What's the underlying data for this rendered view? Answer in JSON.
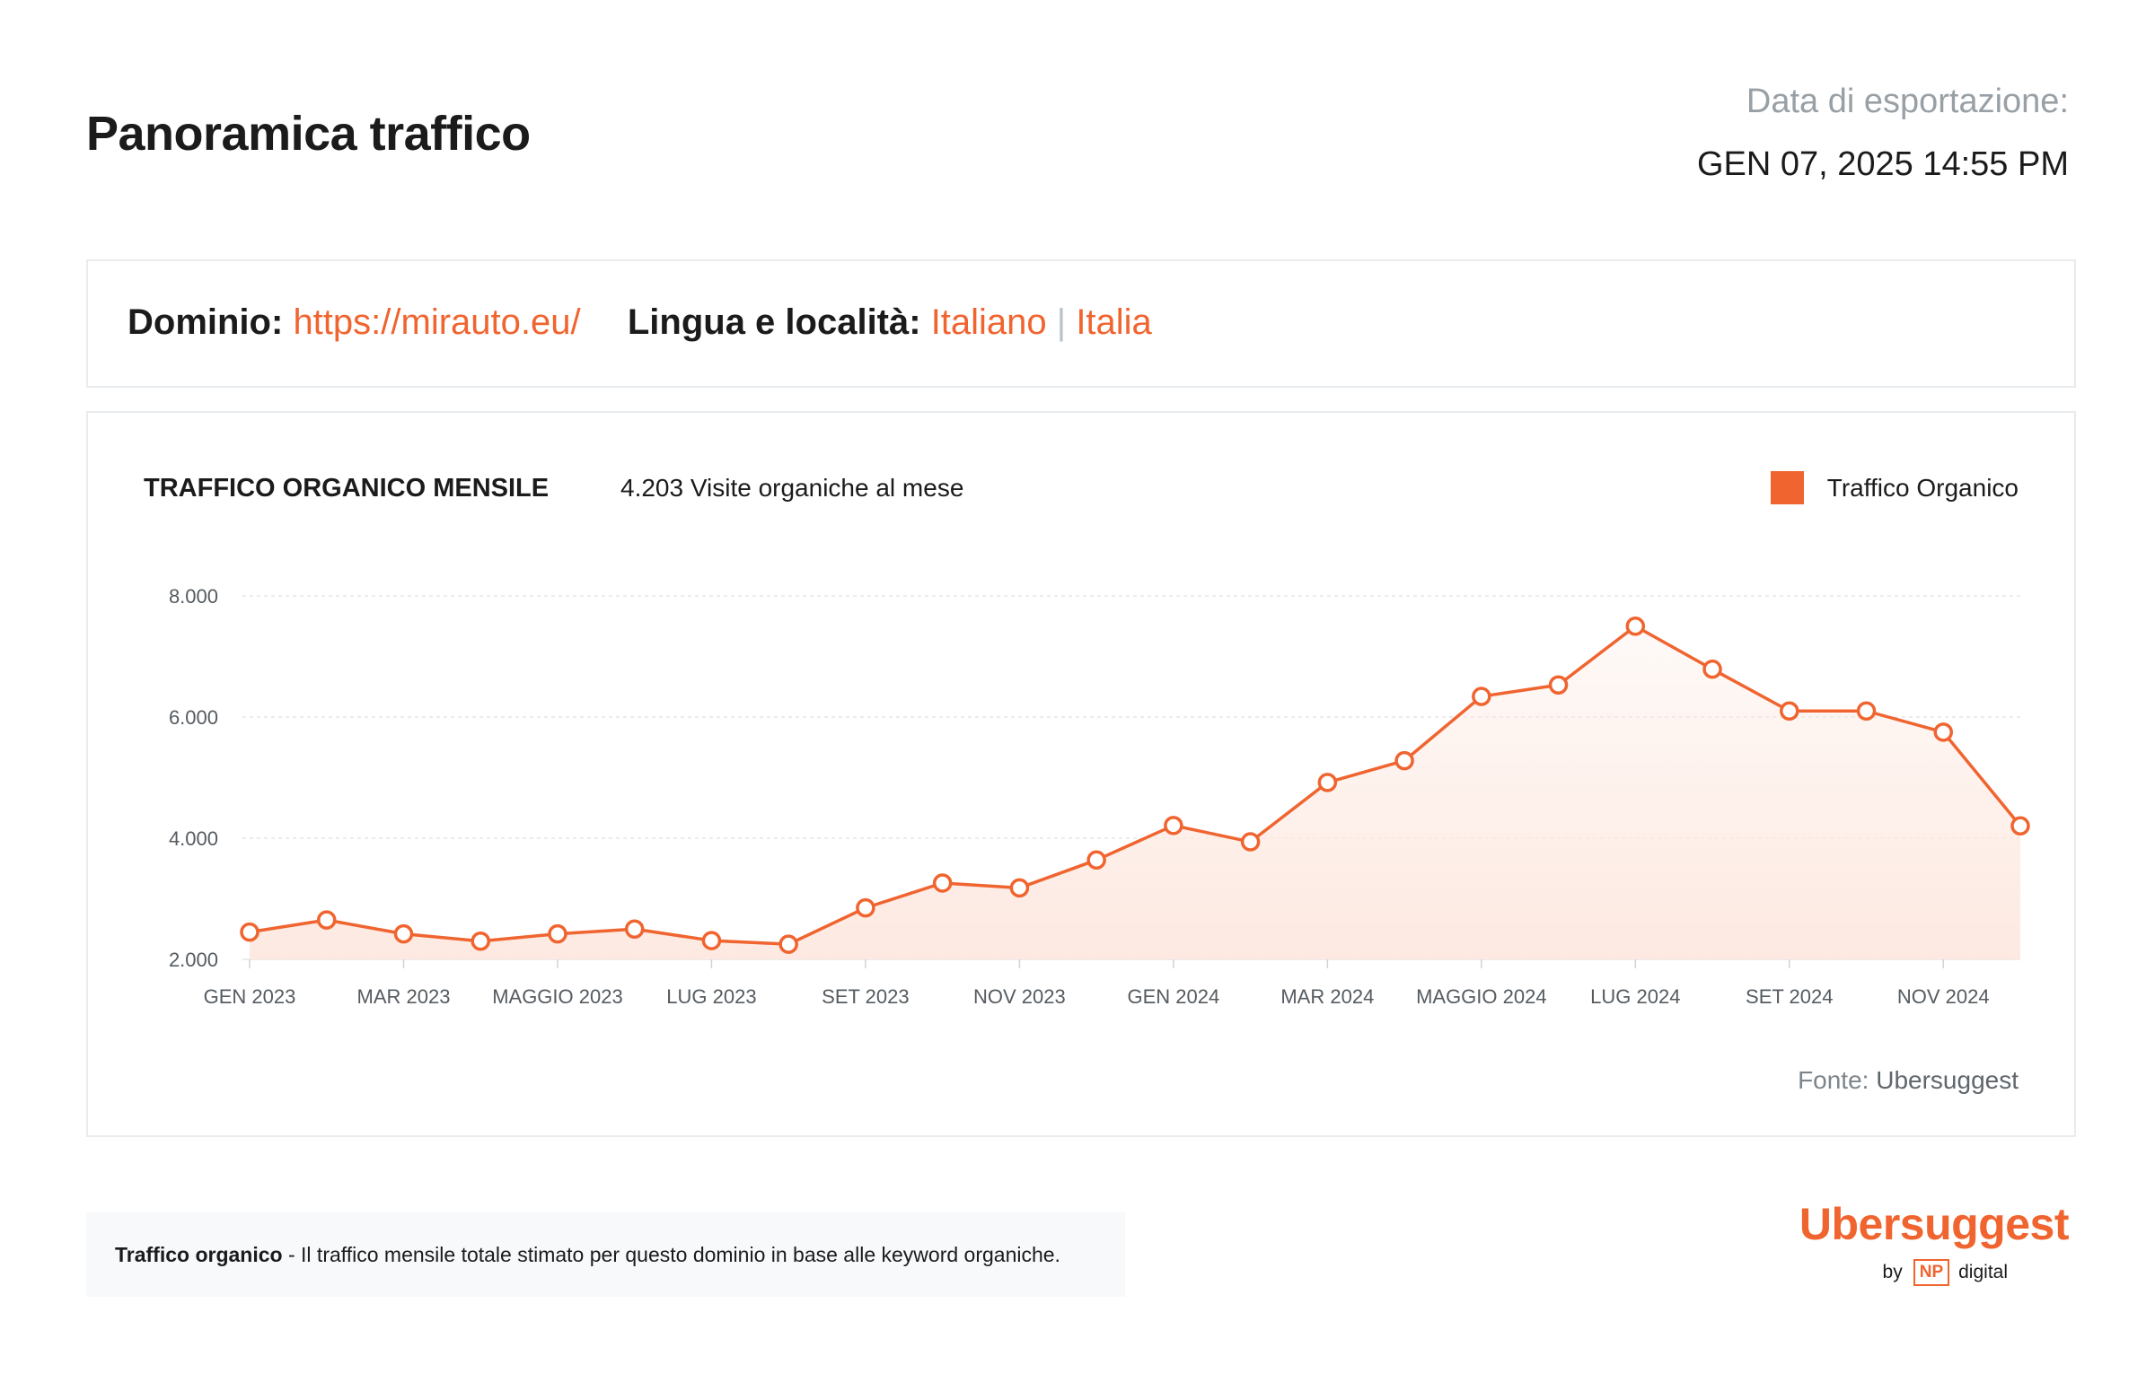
{
  "header": {
    "title": "Panoramica traffico",
    "export_label": "Data di esportazione:",
    "export_date": "GEN 07, 2025 14:55 PM"
  },
  "domain_info": {
    "domain_label": "Dominio:",
    "domain_value": "https://mirauto.eu/",
    "locale_label": "Lingua e località:",
    "language": "Italiano",
    "separator": "|",
    "country": "Italia"
  },
  "chart_panel": {
    "title": "TRAFFICO ORGANICO MENSILE",
    "summary": "4.203 Visite organiche al mese",
    "legend_label": "Traffico Organico",
    "source_label": "Fonte:",
    "source_name": "Ubersuggest"
  },
  "chart_data": {
    "type": "line",
    "title": "TRAFFICO ORGANICO MENSILE",
    "x_tick_labels": [
      "GEN 2023",
      "MAR 2023",
      "MAGGIO 2023",
      "LUG 2023",
      "SET 2023",
      "NOV 2023",
      "GEN 2024",
      "MAR 2024",
      "MAGGIO 2024",
      "LUG 2024",
      "SET 2024",
      "NOV 2024"
    ],
    "y_tick_labels": [
      "2.000",
      "4.000",
      "6.000",
      "8.000"
    ],
    "y_ticks": [
      2000,
      4000,
      6000,
      8000
    ],
    "ylim": [
      2000,
      8000
    ],
    "grid": true,
    "legend_position": "top-right",
    "colors": {
      "line": "#f0642f",
      "fill": "#fde9e1",
      "grid": "#e6e6e6"
    },
    "series": [
      {
        "name": "Traffico Organico",
        "x": [
          "GEN 2023",
          "FEB 2023",
          "MAR 2023",
          "APR 2023",
          "MAGGIO 2023",
          "GIU 2023",
          "LUG 2023",
          "AGO 2023",
          "SET 2023",
          "OTT 2023",
          "NOV 2023",
          "DIC 2023",
          "GEN 2024",
          "FEB 2024",
          "MAR 2024",
          "APR 2024",
          "MAGGIO 2024",
          "GIU 2024",
          "LUG 2024",
          "AGO 2024",
          "SET 2024",
          "OTT 2024",
          "NOV 2024",
          "DIC 2024"
        ],
        "values": [
          2450,
          2650,
          2420,
          2300,
          2420,
          2500,
          2310,
          2250,
          2850,
          3260,
          3180,
          3640,
          4210,
          3940,
          4920,
          5280,
          6340,
          6530,
          7500,
          6790,
          6100,
          6100,
          5750,
          4203
        ]
      }
    ]
  },
  "footer": {
    "note_term": "Traffico organico",
    "note_text": " - Il traffico mensile totale stimato per questo dominio in base alle keyword organiche.",
    "brand_name": "Ubersuggest",
    "brand_by": "by",
    "brand_np": "NP",
    "brand_digital": "digital"
  }
}
